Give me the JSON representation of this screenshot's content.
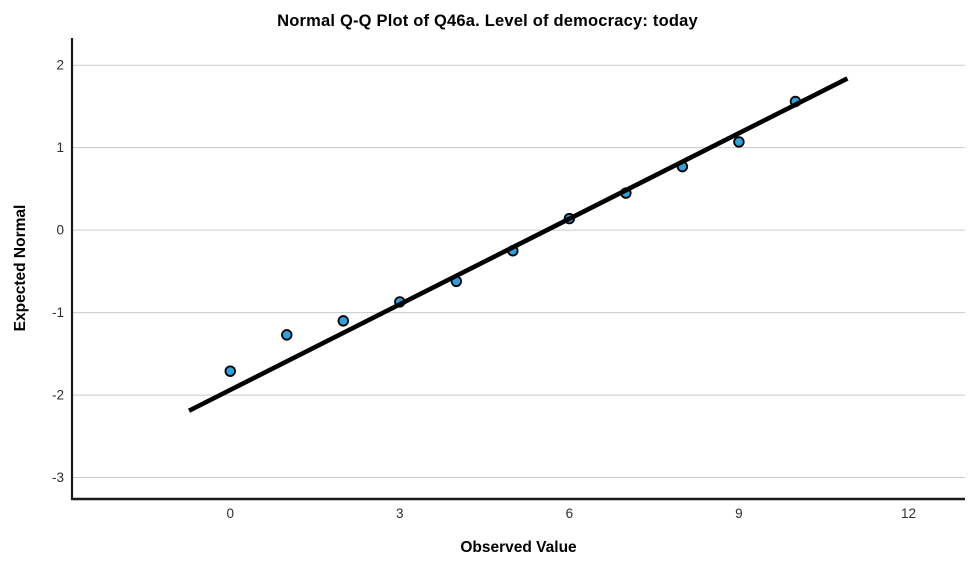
{
  "chart_data": {
    "type": "scatter",
    "title": "Normal Q-Q Plot of Q46a. Level of democracy: today",
    "xlabel": "Observed Value",
    "ylabel": "Expected Normal",
    "xlim": [
      -2.8,
      13.0
    ],
    "ylim": [
      -3.26,
      2.33
    ],
    "x_ticks": [
      0,
      3,
      6,
      9,
      12
    ],
    "y_ticks": [
      2,
      1,
      0,
      -1,
      -2,
      -3
    ],
    "grid": "horizontal-only",
    "legend": "none",
    "points": [
      {
        "x": 0,
        "y": -1.71
      },
      {
        "x": 1,
        "y": -1.27
      },
      {
        "x": 2,
        "y": -1.1
      },
      {
        "x": 3,
        "y": -0.87
      },
      {
        "x": 4,
        "y": -0.62
      },
      {
        "x": 5,
        "y": -0.25
      },
      {
        "x": 6,
        "y": 0.14
      },
      {
        "x": 7,
        "y": 0.45
      },
      {
        "x": 8,
        "y": 0.77
      },
      {
        "x": 9,
        "y": 1.07
      },
      {
        "x": 10,
        "y": 1.56
      }
    ],
    "reference_line": {
      "x1": -0.73,
      "y1": -2.19,
      "x2": 10.92,
      "y2": 1.84
    },
    "colors": {
      "marker_fill": "#2BA2E0",
      "marker_stroke": "#000000",
      "reference_line": "#000000",
      "grid": "#c9c9c9",
      "axis": "#1a1a1a",
      "tick_text": "#2e2e2e",
      "title_text": "#000000"
    }
  }
}
